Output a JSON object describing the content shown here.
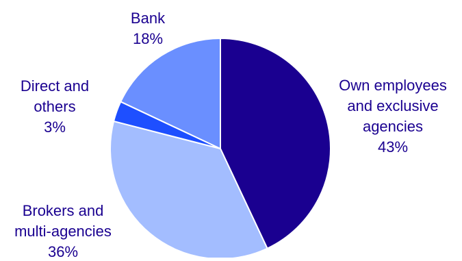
{
  "chart_data": {
    "type": "pie",
    "title": "",
    "slices": [
      {
        "label_lines": [
          "Own employees",
          "and exclusive",
          "agencies"
        ],
        "value": 43,
        "value_label": "43%",
        "color": "#1a0090"
      },
      {
        "label_lines": [
          "Brokers and",
          "multi-agencies"
        ],
        "value": 36,
        "value_label": "36%",
        "color": "#a3bdff"
      },
      {
        "label_lines": [
          "Direct and",
          "others"
        ],
        "value": 3,
        "value_label": "3%",
        "color": "#1e4fff"
      },
      {
        "label_lines": [
          "Bank"
        ],
        "value": 18,
        "value_label": "18%",
        "color": "#6a8fff"
      }
    ],
    "start_at": "top",
    "direction": "clockwise",
    "label_color": "#1a0090",
    "border_color": "#ffffff"
  }
}
